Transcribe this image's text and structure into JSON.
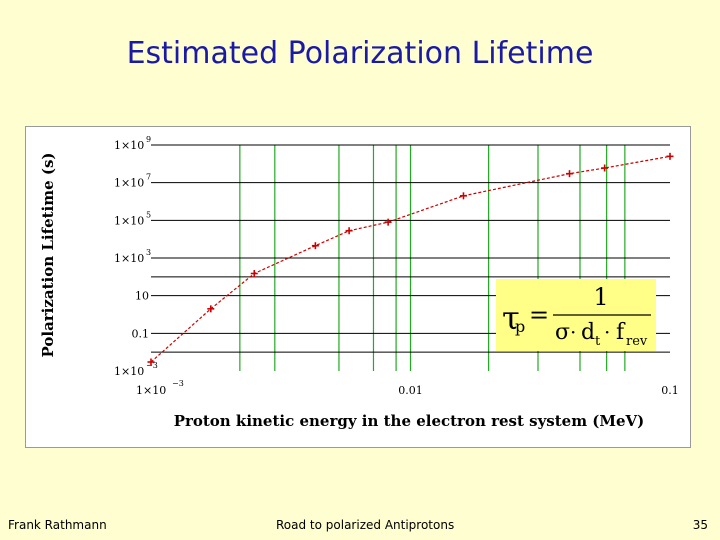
{
  "slide": {
    "title": "Estimated Polarization Lifetime",
    "author": "Frank Rathmann",
    "footer_title": "Road to polarized Antiprotons",
    "page_number": "35"
  },
  "chart_data": {
    "type": "line",
    "title": "",
    "xlabel": "Proton kinetic energy in the electron rest system (MeV)",
    "ylabel": "Polarization Lifetime (s)",
    "x_scale": "log",
    "y_scale": "log",
    "xlim": [
      0.001,
      0.1
    ],
    "ylim": [
      0.001,
      1000000000
    ],
    "x_ticks": [
      {
        "value": 0.001,
        "mantissa": "1×10",
        "exponent": "−3"
      },
      {
        "value": 0.01,
        "label": "0.01"
      },
      {
        "value": 0.1,
        "label": "0.1"
      }
    ],
    "y_ticks": [
      {
        "value": 0.001,
        "mantissa": "1×10",
        "exponent": "−3"
      },
      {
        "value": 0.1,
        "label": "0.1"
      },
      {
        "value": 10,
        "label": "10"
      },
      {
        "value": 1000,
        "mantissa": "1×10",
        "exponent": "3"
      },
      {
        "value": 100000,
        "mantissa": "1×10",
        "exponent": "5"
      },
      {
        "value": 10000000,
        "mantissa": "1×10",
        "exponent": "7"
      },
      {
        "value": 1000000000,
        "mantissa": "1×10",
        "exponent": "9"
      }
    ],
    "extra_h_gridlines": [
      0.01,
      100
    ],
    "vertical_gridlines": [
      0.0022,
      0.003,
      0.0053,
      0.0072,
      0.0088,
      0.01,
      0.02,
      0.031,
      0.045,
      0.057,
      0.067
    ],
    "vertical_grid_color": "#22aa22",
    "horizontal_grid_color": "#000000",
    "grid": true,
    "series": [
      {
        "color": "#cc0000",
        "line_style": "dashed",
        "marker": "plus",
        "x": [
          0.001,
          0.0017,
          0.0025,
          0.0043,
          0.0058,
          0.0082,
          0.016,
          0.041,
          0.056,
          0.1
        ],
        "y": [
          0.003,
          2,
          150,
          4500,
          28000,
          80000,
          2000000,
          30000000,
          60000000,
          250000000
        ]
      }
    ],
    "formula": {
      "lhs": "τ",
      "lhs_sub": "p",
      "equals": "=",
      "numerator": "1",
      "sigma": "σ",
      "dot": "·",
      "d": "d",
      "d_sub": "t",
      "f": "f",
      "f_sub": "rev",
      "box_color": "#ffff88"
    }
  }
}
